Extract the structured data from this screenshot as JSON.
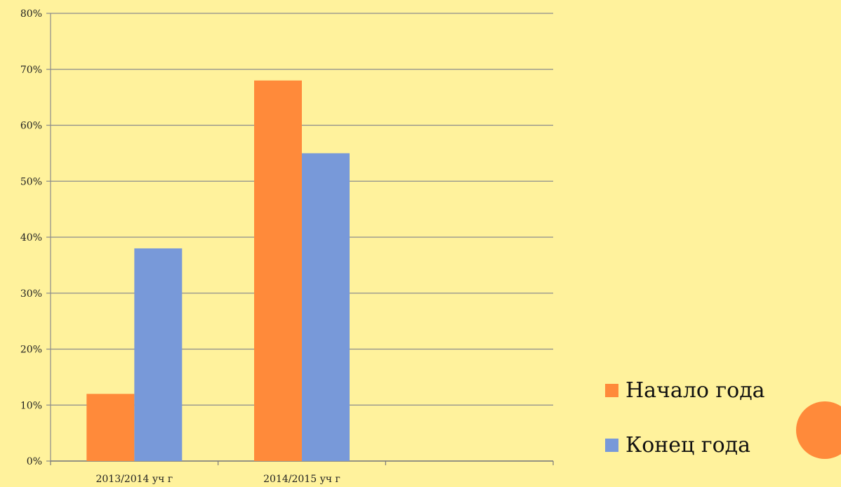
{
  "chart_data": {
    "type": "bar",
    "title": "",
    "xlabel": "",
    "ylabel": "",
    "categories": [
      "2013/2014 уч г",
      "2014/2015 уч г",
      ""
    ],
    "series": [
      {
        "name": "Начало года",
        "color": "#FF8A3A",
        "values": [
          12,
          68,
          null
        ]
      },
      {
        "name": "Конец года",
        "color": "#7899D9",
        "values": [
          38,
          55,
          null
        ]
      }
    ],
    "ylim": [
      0,
      80
    ],
    "yticks": [
      "0%",
      "10%",
      "20%",
      "30%",
      "40%",
      "50%",
      "60%",
      "70%",
      "80%"
    ],
    "grid": true,
    "legend_position": "bottom-right"
  },
  "colors": {
    "background": "#FFF29C",
    "grid": "#8C8C8C",
    "decor_circle": "#FF8A3A"
  }
}
